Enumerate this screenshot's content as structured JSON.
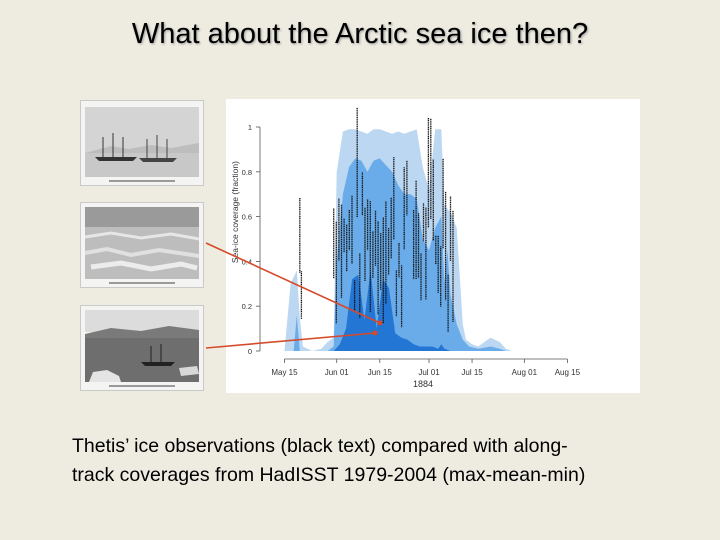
{
  "slide": {
    "title": "What about the Arctic sea ice then?",
    "caption_line1": "Thetis’ ice observations (black text) compared with along-",
    "caption_line2": "track coverages from HadISST 1979-2004 (max-mean-min)"
  },
  "colors": {
    "background": "#eeece1",
    "max_band": "#bcd7f2",
    "mean_band": "#6aacea",
    "min_band": "#2476d4",
    "arrow": "#d64a2a"
  },
  "photos": [
    {
      "name": "ships-in-ice-engraving"
    },
    {
      "name": "pack-ice-engraving"
    },
    {
      "name": "ship-and-floes-engraving"
    }
  ],
  "chart_data": {
    "type": "area",
    "ylabel": "Sea-ice coverage (fraction)",
    "xlabel": "1884",
    "ylim": [
      0,
      1
    ],
    "yticks": [
      "0",
      "0.2",
      "0.4",
      "0.6",
      "0.8",
      "1"
    ],
    "xticks": [
      {
        "label": "May 15",
        "doy": 136
      },
      {
        "label": "Jun 01",
        "doy": 153
      },
      {
        "label": "Jun 15",
        "doy": 167
      },
      {
        "label": "Jul 01",
        "doy": 183
      },
      {
        "label": "Jul 15",
        "doy": 197
      },
      {
        "label": "Aug 01",
        "doy": 214
      },
      {
        "label": "Aug 15",
        "doy": 228
      }
    ],
    "xlim": [
      130,
      236
    ],
    "grid": false,
    "series": [
      {
        "role": "max",
        "x": [
          135,
          136,
          138,
          140,
          141,
          142,
          145,
          148,
          150,
          152,
          153,
          155,
          157,
          159,
          161,
          163,
          165,
          167,
          169,
          171,
          173,
          175,
          177,
          179,
          181,
          183,
          185,
          187,
          188,
          190,
          192,
          194,
          195,
          197,
          199,
          201,
          203,
          206,
          208,
          210
        ],
        "y": [
          0,
          0,
          0.3,
          0.36,
          0.15,
          0.02,
          0,
          0.01,
          0.04,
          0.06,
          0.8,
          0.98,
          0.99,
          0.99,
          0.98,
          0.97,
          0.99,
          0.99,
          0.98,
          0.97,
          0.98,
          0.97,
          0.98,
          0.99,
          0.82,
          0.72,
          0.99,
          0.99,
          0.65,
          0.62,
          0.55,
          0.12,
          0.05,
          0.03,
          0.02,
          0.04,
          0.06,
          0.04,
          0.01,
          0
        ]
      },
      {
        "role": "mean",
        "x": [
          139,
          140,
          141,
          150,
          152,
          153,
          155,
          157,
          159,
          161,
          163,
          165,
          167,
          169,
          171,
          173,
          175,
          177,
          179,
          181,
          183,
          185,
          187,
          188,
          189,
          190,
          192,
          194,
          196,
          199,
          203,
          206,
          208
        ],
        "y": [
          0,
          0.16,
          0,
          0,
          0.02,
          0.4,
          0.7,
          0.82,
          0.86,
          0.85,
          0.8,
          0.85,
          0.86,
          0.83,
          0.8,
          0.74,
          0.7,
          0.7,
          0.68,
          0.5,
          0.45,
          0.55,
          0.6,
          0.3,
          0.45,
          0.25,
          0.12,
          0.05,
          0.02,
          0.01,
          0.02,
          0.01,
          0
        ]
      },
      {
        "role": "min",
        "x": [
          152,
          154,
          156,
          158,
          160,
          162,
          164,
          166,
          168,
          170,
          172,
          174,
          176,
          178,
          180,
          182,
          184,
          186,
          187,
          188,
          190
        ],
        "y": [
          0,
          0.03,
          0.1,
          0.32,
          0.34,
          0.14,
          0.36,
          0.1,
          0.32,
          0.28,
          0.08,
          0.06,
          0.05,
          0.03,
          0.02,
          0.02,
          0.02,
          0.01,
          0.03,
          0.01,
          0
        ]
      }
    ]
  }
}
